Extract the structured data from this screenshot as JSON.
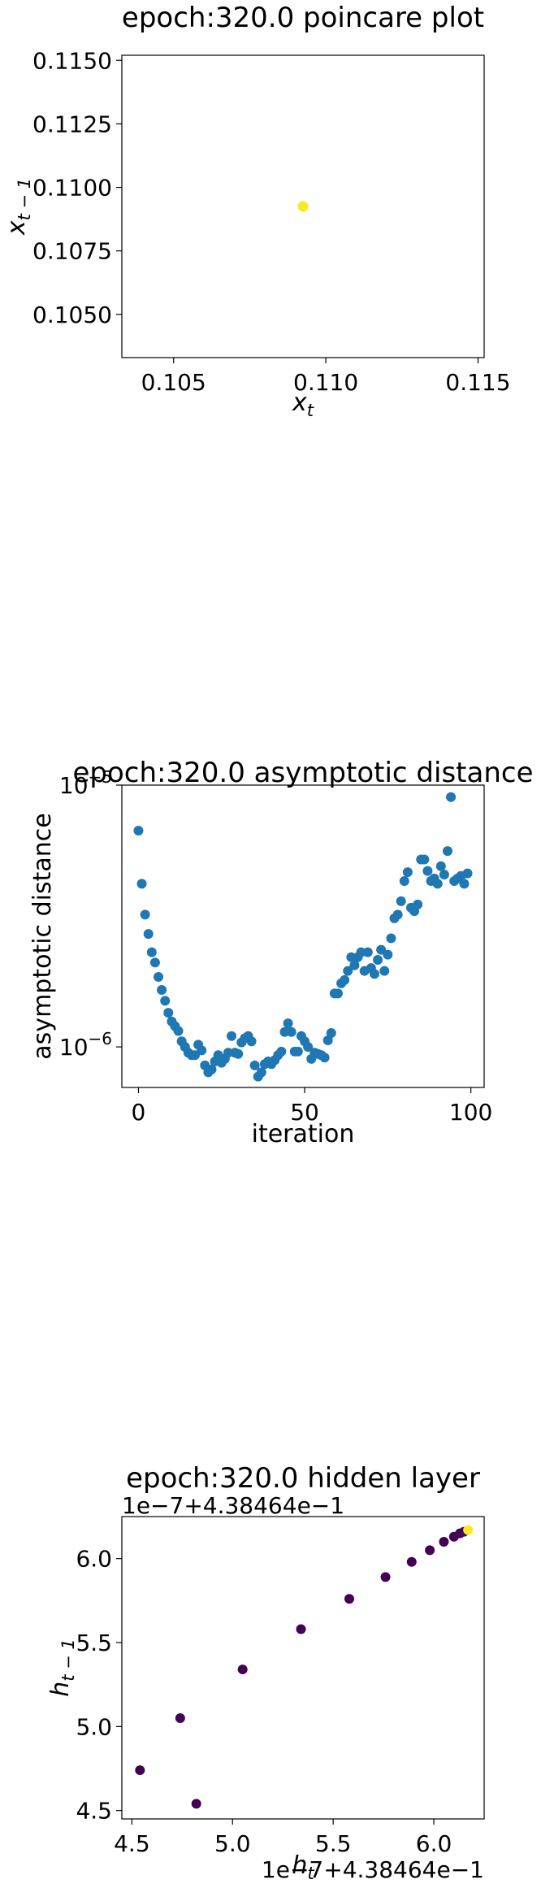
{
  "chart_data": [
    {
      "type": "scatter",
      "title": "epoch:320.0 poincare plot",
      "xlabel": "x",
      "xlabel_sub": "t",
      "ylabel": "x",
      "ylabel_sub": "t − 1",
      "xlim": [
        0.1033,
        0.1152
      ],
      "ylim": [
        0.1033,
        0.1152
      ],
      "xticks": [
        0.105,
        0.11,
        0.115
      ],
      "xtick_labels": [
        "0.105",
        "0.110",
        "0.115"
      ],
      "yticks": [
        0.105,
        0.1075,
        0.11,
        0.1125,
        0.115
      ],
      "ytick_labels": [
        "0.1050",
        "0.1075",
        "0.1100",
        "0.1125",
        "0.1150"
      ],
      "point_color": "#fde725",
      "points": [
        {
          "x": 0.10925,
          "y": 0.10925
        }
      ]
    },
    {
      "type": "scatter",
      "title": "epoch:320.0 asymptotic distance",
      "xlabel": "iteration",
      "ylabel": "asymptotic distance",
      "yscale": "log",
      "xlim": [
        -5,
        104
      ],
      "ylim": [
        7e-07,
        1e-05
      ],
      "xticks": [
        0,
        50,
        100
      ],
      "xtick_labels": [
        "0",
        "50",
        "100"
      ],
      "yticks": [
        1e-06,
        1e-05
      ],
      "ytick_labels": [
        {
          "base": "10",
          "exp": "−6"
        },
        {
          "base": "10",
          "exp": "−5"
        }
      ],
      "point_color": "#1f77b4",
      "x": [
        0,
        1,
        2,
        3,
        4,
        5,
        6,
        7,
        8,
        9,
        10,
        11,
        12,
        13,
        14,
        15,
        16,
        17,
        18,
        19,
        20,
        21,
        22,
        23,
        24,
        25,
        26,
        27,
        28,
        29,
        30,
        31,
        32,
        33,
        34,
        35,
        36,
        37,
        38,
        39,
        40,
        41,
        42,
        43,
        44,
        45,
        46,
        47,
        48,
        49,
        50,
        51,
        52,
        53,
        54,
        55,
        56,
        57,
        58,
        59,
        60,
        61,
        62,
        63,
        64,
        65,
        66,
        67,
        68,
        69,
        70,
        71,
        72,
        73,
        74,
        75,
        76,
        77,
        78,
        79,
        80,
        81,
        82,
        83,
        84,
        85,
        86,
        87,
        88,
        89,
        90,
        91,
        92,
        93,
        94,
        95,
        96,
        97,
        98,
        99
      ],
      "y": [
        6.7e-06,
        4.2e-06,
        3.2e-06,
        2.7e-06,
        2.3e-06,
        2.1e-06,
        1.85e-06,
        1.65e-06,
        1.5e-06,
        1.35e-06,
        1.25e-06,
        1.2e-06,
        1.15e-06,
        1.05e-06,
        1e-06,
        9.5e-07,
        9.3e-07,
        9.3e-07,
        1.02e-06,
        9.7e-07,
        8.5e-07,
        8e-07,
        8.2e-07,
        8.8e-07,
        9.3e-07,
        8.7e-07,
        9e-07,
        9.5e-07,
        1.1e-06,
        9.5e-07,
        9.4e-07,
        1.04e-06,
        1.08e-06,
        1.1e-06,
        1.05e-06,
        8.5e-07,
        7.7e-07,
        8e-07,
        8.6e-07,
        8.8e-07,
        8.6e-07,
        8.9e-07,
        9.3e-07,
        9.6e-07,
        1.14e-06,
        1.23e-06,
        1.14e-06,
        9.6e-07,
        9.6e-07,
        1.1e-06,
        1.05e-06,
        1e-06,
        9e-07,
        9.5e-07,
        9.4e-07,
        9.3e-07,
        9.1e-07,
        1.06e-06,
        1.13e-06,
        1.6e-06,
        1.6e-06,
        1.75e-06,
        1.8e-06,
        1.95e-06,
        2.2e-06,
        2.05e-06,
        2.2e-06,
        2.3e-06,
        1.95e-06,
        2.3e-06,
        2e-06,
        1.9e-06,
        2.15e-06,
        2.35e-06,
        1.95e-06,
        2.25e-06,
        2.6e-06,
        3.1e-06,
        3.2e-06,
        3.6e-06,
        4.3e-06,
        4.65e-06,
        3.4e-06,
        3.3e-06,
        3.5e-06,
        5.2e-06,
        5.2e-06,
        4.7e-06,
        4.3e-06,
        4.4e-06,
        4.2e-06,
        4.9e-06,
        4.55e-06,
        5.6e-06,
        9e-06,
        4.3e-06,
        4.4e-06,
        4.5e-06,
        4.2e-06,
        4.6e-06
      ]
    },
    {
      "type": "scatter",
      "title": "epoch:320.0 hidden layer",
      "xlabel": "h",
      "xlabel_sub": "t",
      "ylabel": "h",
      "ylabel_sub": "t − 1",
      "x_offset_label": "1e−7+4.38464e−1",
      "y_offset_label": "1e−7+4.38464e−1",
      "xlim": [
        4.45,
        6.25
      ],
      "ylim": [
        4.45,
        6.25
      ],
      "xticks": [
        4.5,
        5.0,
        5.5,
        6.0
      ],
      "xtick_labels": [
        "4.5",
        "5.0",
        "5.5",
        "6.0"
      ],
      "yticks": [
        4.5,
        5.0,
        5.5,
        6.0
      ],
      "ytick_labels": [
        "4.5",
        "5.0",
        "5.5",
        "6.0"
      ],
      "colormap": "viridis",
      "color_stops": [
        "#440154",
        "#440154",
        "#482173",
        "#fde725"
      ],
      "x": [
        4.54,
        4.74,
        4.82,
        5.05,
        5.34,
        5.58,
        5.76,
        5.89,
        5.98,
        6.05,
        6.1,
        6.13,
        6.15,
        6.17
      ],
      "y": [
        4.74,
        5.05,
        4.54,
        5.34,
        5.58,
        5.76,
        5.89,
        5.98,
        6.05,
        6.1,
        6.13,
        6.15,
        6.16,
        6.17
      ],
      "c": [
        0.0,
        0.02,
        0.01,
        0.03,
        0.04,
        0.05,
        0.06,
        0.07,
        0.08,
        0.1,
        0.15,
        0.2,
        0.4,
        1.0
      ]
    }
  ]
}
